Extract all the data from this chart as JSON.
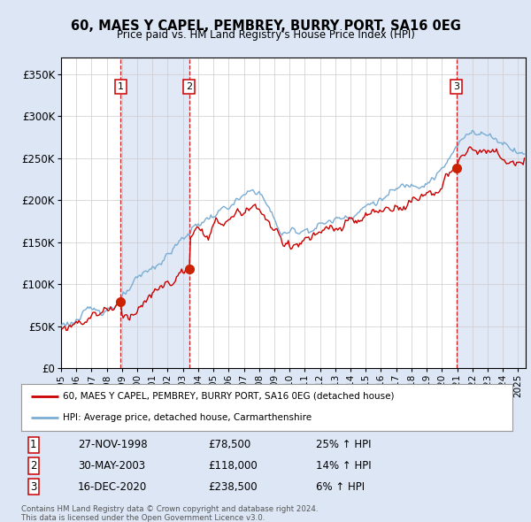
{
  "title": "60, MAES Y CAPEL, PEMBREY, BURRY PORT, SA16 0EG",
  "subtitle": "Price paid vs. HM Land Registry's House Price Index (HPI)",
  "ylim": [
    0,
    370000
  ],
  "yticks": [
    0,
    50000,
    100000,
    150000,
    200000,
    250000,
    300000,
    350000
  ],
  "ytick_labels": [
    "£0",
    "£50K",
    "£100K",
    "£150K",
    "£200K",
    "£250K",
    "£300K",
    "£350K"
  ],
  "background_color": "#dce6f5",
  "plot_background": "#ffffff",
  "grid_color": "#cccccc",
  "hpi_color": "#7aadd4",
  "price_color": "#cc0000",
  "vline_color": "#cc0000",
  "shade_color": "#c8d8ee",
  "sale_events": [
    {
      "label": "1",
      "date_num": 1998.92,
      "price": 78500
    },
    {
      "label": "2",
      "date_num": 2003.41,
      "price": 118000
    },
    {
      "label": "3",
      "date_num": 2020.96,
      "price": 238500
    }
  ],
  "table_data": [
    [
      "1",
      "27-NOV-1998",
      "£78,500",
      "25% ↑ HPI"
    ],
    [
      "2",
      "30-MAY-2003",
      "£118,000",
      "14% ↑ HPI"
    ],
    [
      "3",
      "16-DEC-2020",
      "£238,500",
      "6% ↑ HPI"
    ]
  ],
  "legend_line1": "60, MAES Y CAPEL, PEMBREY, BURRY PORT, SA16 0EG (detached house)",
  "legend_line2": "HPI: Average price, detached house, Carmarthenshire",
  "footer1": "Contains HM Land Registry data © Crown copyright and database right 2024.",
  "footer2": "This data is licensed under the Open Government Licence v3.0.",
  "xmin": 1995.0,
  "xmax": 2025.5,
  "xtick_years": [
    1995,
    1996,
    1997,
    1998,
    1999,
    2000,
    2001,
    2002,
    2003,
    2004,
    2005,
    2006,
    2007,
    2008,
    2009,
    2010,
    2011,
    2012,
    2013,
    2014,
    2015,
    2016,
    2017,
    2018,
    2019,
    2020,
    2021,
    2022,
    2023,
    2024,
    2025
  ]
}
